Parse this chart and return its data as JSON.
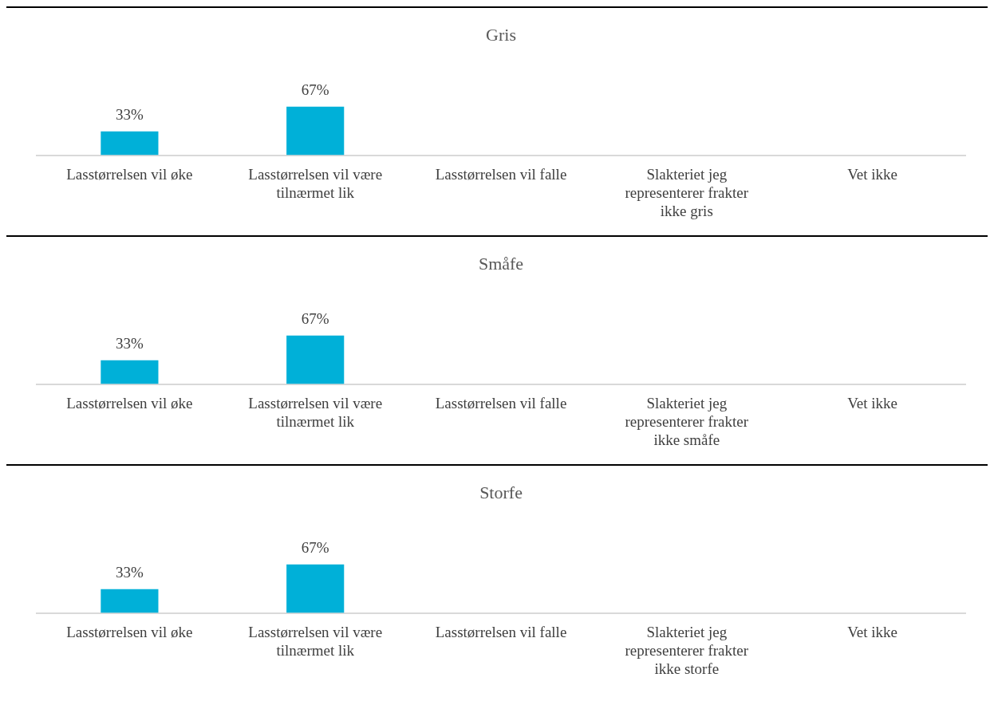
{
  "chart_data": [
    {
      "type": "bar",
      "title": "Gris",
      "categories": [
        "Lasstørrelsen vil øke",
        "Lasstørrelsen vil være tilnærmet lik",
        "Lasstørrelsen vil falle",
        "Slakteriet jeg representerer frakter ikke gris",
        "Vet ikke"
      ],
      "values": [
        33,
        67,
        null,
        null,
        null
      ],
      "color": "#00b0d8",
      "value_labels": [
        "33%",
        "67%",
        null,
        null,
        null
      ]
    },
    {
      "type": "bar",
      "title": "Småfe",
      "categories": [
        "Lasstørrelsen vil øke",
        "Lasstørrelsen vil være tilnærmet lik",
        "Lasstørrelsen vil falle",
        "Slakteriet jeg representerer frakter ikke småfe",
        "Vet ikke"
      ],
      "values": [
        33,
        67,
        null,
        null,
        null
      ],
      "color": "#00b0d8",
      "value_labels": [
        "33%",
        "67%",
        null,
        null,
        null
      ]
    },
    {
      "type": "bar",
      "title": "Storfe",
      "categories": [
        "Lasstørrelsen vil øke",
        "Lasstørrelsen vil være tilnærmet lik",
        "Lasstørrelsen vil falle",
        "Slakteriet jeg representerer frakter ikke storfe",
        "Vet ikke"
      ],
      "values": [
        33,
        67,
        null,
        null,
        null
      ],
      "color": "#00b0d8",
      "value_labels": [
        "33%",
        "67%",
        null,
        null,
        null
      ]
    }
  ]
}
